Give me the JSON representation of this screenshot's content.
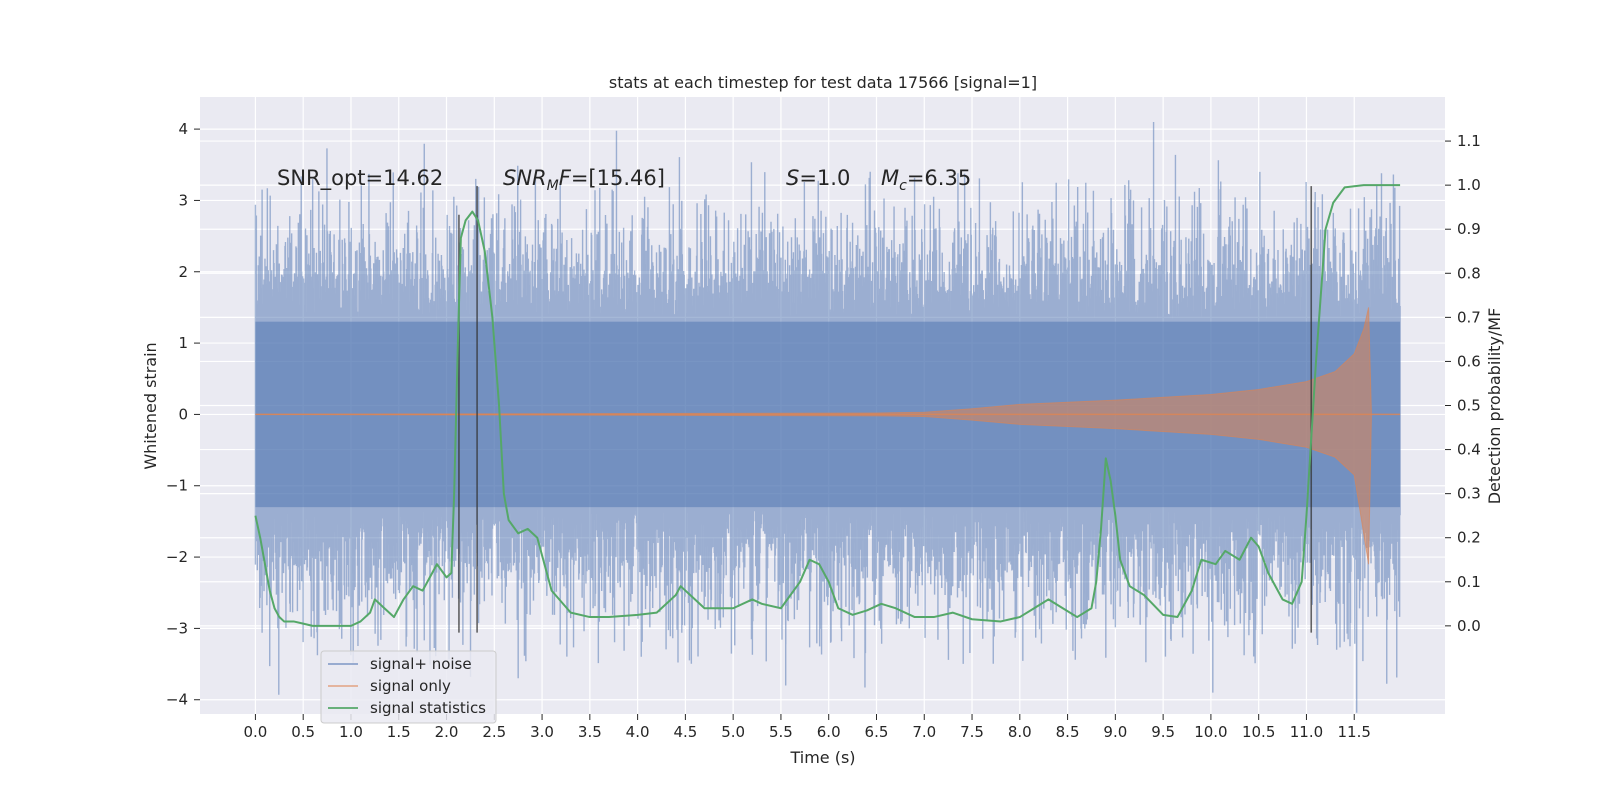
{
  "chart_data": {
    "type": "line",
    "title": "stats at each timestep for test data 17566 [signal=1]",
    "xlabel": "Time (s)",
    "ylabel": "Whitened strain",
    "ylabel_right": "Detection probability/MF",
    "xlim": [
      -0.58,
      12.45
    ],
    "ylim": [
      -4.2,
      4.45
    ],
    "ylim_right": [
      -0.2,
      1.2
    ],
    "x_ticks": [
      "0.0",
      "0.5",
      "1.0",
      "1.5",
      "2.0",
      "2.5",
      "3.0",
      "3.5",
      "4.0",
      "4.5",
      "5.0",
      "5.5",
      "6.0",
      "6.5",
      "7.0",
      "7.5",
      "8.0",
      "8.5",
      "9.0",
      "9.5",
      "10.0",
      "10.5",
      "11.0",
      "11.5"
    ],
    "y_ticks": [
      "4",
      "3",
      "2",
      "1",
      "0",
      "−1",
      "−2",
      "−3",
      "−4"
    ],
    "y_ticks_right": [
      "1.1",
      "1.0",
      "0.9",
      "0.8",
      "0.7",
      "0.6",
      "0.5",
      "0.4",
      "0.3",
      "0.2",
      "0.1",
      "0.0"
    ],
    "grid": true,
    "legend_position": "lower-left",
    "annotations": {
      "snr_opt": "SNR_opt=14.62",
      "snr_mf_sym": "SNR",
      "snr_mf_sub": "M",
      "snr_mf_sym2": "F",
      "snr_mf_val": "=[15.46]",
      "s_sym": "S",
      "s_val": "=1.0",
      "mc_sym": "M",
      "mc_sub": "c",
      "mc_val": "=6.35"
    },
    "vertical_markers": [
      {
        "x": 2.13,
        "y_from": -3.06,
        "y_to": 2.8
      },
      {
        "x": 2.32,
        "y_from": -3.06,
        "y_to": 3.2
      },
      {
        "x": 11.05,
        "y_from": -3.06,
        "y_to": 3.2
      }
    ],
    "series": [
      {
        "name": "signal+ noise",
        "color": "#4c72b0",
        "kind": "noise",
        "x_range": [
          0.0,
          11.98
        ],
        "typical_envelope": [
          -2.2,
          2.8
        ],
        "extreme_values": [
          {
            "x": 9.4,
            "y": 4.1
          },
          {
            "x": 10.02,
            "y": -3.9
          },
          {
            "x": 5.55,
            "y": -3.8
          },
          {
            "x": 2.75,
            "y": -3.7
          }
        ]
      },
      {
        "name": "signal only",
        "color": "#dd8452",
        "kind": "chirp",
        "x_range": [
          0.0,
          11.98
        ],
        "amplitude_envelope": [
          [
            0.0,
            0.0
          ],
          [
            6.5,
            0.02
          ],
          [
            7.0,
            0.03
          ],
          [
            7.5,
            0.08
          ],
          [
            8.0,
            0.14
          ],
          [
            9.0,
            0.2
          ],
          [
            10.0,
            0.28
          ],
          [
            10.5,
            0.35
          ],
          [
            11.0,
            0.46
          ],
          [
            11.3,
            0.6
          ],
          [
            11.5,
            0.85
          ],
          [
            11.6,
            1.2
          ],
          [
            11.65,
            1.5
          ],
          [
            11.68,
            0.0
          ]
        ]
      },
      {
        "name": "signal statistics",
        "color": "#55a868",
        "kind": "line",
        "axis": "right",
        "points": [
          [
            0.0,
            0.25
          ],
          [
            0.05,
            0.2
          ],
          [
            0.1,
            0.14
          ],
          [
            0.15,
            0.08
          ],
          [
            0.2,
            0.04
          ],
          [
            0.25,
            0.02
          ],
          [
            0.3,
            0.01
          ],
          [
            0.4,
            0.01
          ],
          [
            0.5,
            0.005
          ],
          [
            0.6,
            0.0
          ],
          [
            0.8,
            0.0
          ],
          [
            1.0,
            0.0
          ],
          [
            1.1,
            0.01
          ],
          [
            1.2,
            0.03
          ],
          [
            1.25,
            0.06
          ],
          [
            1.35,
            0.04
          ],
          [
            1.45,
            0.02
          ],
          [
            1.55,
            0.06
          ],
          [
            1.65,
            0.09
          ],
          [
            1.75,
            0.08
          ],
          [
            1.85,
            0.12
          ],
          [
            1.9,
            0.14
          ],
          [
            2.0,
            0.11
          ],
          [
            2.05,
            0.12
          ],
          [
            2.08,
            0.3
          ],
          [
            2.12,
            0.65
          ],
          [
            2.15,
            0.88
          ],
          [
            2.2,
            0.92
          ],
          [
            2.27,
            0.94
          ],
          [
            2.33,
            0.92
          ],
          [
            2.4,
            0.85
          ],
          [
            2.48,
            0.7
          ],
          [
            2.55,
            0.5
          ],
          [
            2.6,
            0.3
          ],
          [
            2.65,
            0.24
          ],
          [
            2.75,
            0.21
          ],
          [
            2.85,
            0.22
          ],
          [
            2.95,
            0.2
          ],
          [
            3.0,
            0.16
          ],
          [
            3.1,
            0.08
          ],
          [
            3.3,
            0.03
          ],
          [
            3.5,
            0.02
          ],
          [
            3.7,
            0.02
          ],
          [
            4.0,
            0.025
          ],
          [
            4.2,
            0.03
          ],
          [
            4.4,
            0.07
          ],
          [
            4.45,
            0.09
          ],
          [
            4.55,
            0.07
          ],
          [
            4.7,
            0.04
          ],
          [
            5.0,
            0.04
          ],
          [
            5.2,
            0.06
          ],
          [
            5.3,
            0.05
          ],
          [
            5.5,
            0.04
          ],
          [
            5.7,
            0.1
          ],
          [
            5.8,
            0.15
          ],
          [
            5.9,
            0.14
          ],
          [
            6.0,
            0.1
          ],
          [
            6.1,
            0.04
          ],
          [
            6.25,
            0.025
          ],
          [
            6.4,
            0.035
          ],
          [
            6.55,
            0.05
          ],
          [
            6.7,
            0.04
          ],
          [
            6.9,
            0.02
          ],
          [
            7.1,
            0.02
          ],
          [
            7.3,
            0.03
          ],
          [
            7.5,
            0.015
          ],
          [
            7.8,
            0.01
          ],
          [
            8.0,
            0.02
          ],
          [
            8.15,
            0.04
          ],
          [
            8.3,
            0.06
          ],
          [
            8.45,
            0.04
          ],
          [
            8.6,
            0.02
          ],
          [
            8.75,
            0.04
          ],
          [
            8.8,
            0.1
          ],
          [
            8.85,
            0.22
          ],
          [
            8.9,
            0.38
          ],
          [
            8.95,
            0.33
          ],
          [
            9.0,
            0.25
          ],
          [
            9.05,
            0.15
          ],
          [
            9.15,
            0.09
          ],
          [
            9.3,
            0.07
          ],
          [
            9.5,
            0.025
          ],
          [
            9.65,
            0.02
          ],
          [
            9.8,
            0.08
          ],
          [
            9.9,
            0.15
          ],
          [
            10.05,
            0.14
          ],
          [
            10.15,
            0.17
          ],
          [
            10.3,
            0.15
          ],
          [
            10.42,
            0.2
          ],
          [
            10.5,
            0.18
          ],
          [
            10.6,
            0.12
          ],
          [
            10.75,
            0.06
          ],
          [
            10.85,
            0.05
          ],
          [
            10.95,
            0.1
          ],
          [
            11.0,
            0.25
          ],
          [
            11.1,
            0.6
          ],
          [
            11.2,
            0.9
          ],
          [
            11.28,
            0.96
          ],
          [
            11.4,
            0.995
          ],
          [
            11.6,
            1.0
          ],
          [
            11.98,
            1.0
          ]
        ]
      }
    ]
  }
}
